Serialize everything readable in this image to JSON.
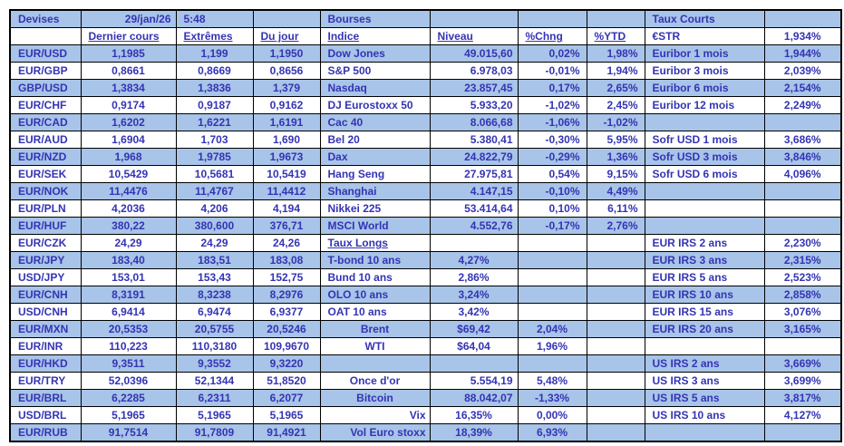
{
  "meta": {
    "date": "29/jan/26",
    "time": "5:48"
  },
  "colors": {
    "band": "#A8C4E8",
    "text": "#3434B4",
    "grid": "#000000",
    "background": "#FFFFFF"
  },
  "devises": {
    "title": "Devises",
    "headers": [
      "Dernier cours",
      "Extrêmes",
      "Du jour"
    ],
    "rows": [
      [
        "EUR/USD",
        "1,1985",
        "1,199",
        "1,1950"
      ],
      [
        "EUR/GBP",
        "0,8661",
        "0,8669",
        "0,8656"
      ],
      [
        "GBP/USD",
        "1,3834",
        "1,3836",
        "1,379"
      ],
      [
        "EUR/CHF",
        "0,9174",
        "0,9187",
        "0,9162"
      ],
      [
        "EUR/CAD",
        "1,6202",
        "1,6221",
        "1,6191"
      ],
      [
        "EUR/AUD",
        "1,6904",
        "1,703",
        "1,690"
      ],
      [
        "EUR/NZD",
        "1,968",
        "1,9785",
        "1,9673"
      ],
      [
        "EUR/SEK",
        "10,5429",
        "10,5681",
        "10,5419"
      ],
      [
        "EUR/NOK",
        "11,4476",
        "11,4767",
        "11,4412"
      ],
      [
        "EUR/PLN",
        "4,2036",
        "4,206",
        "4,194"
      ],
      [
        "EUR/HUF",
        "380,22",
        "380,600",
        "376,71"
      ],
      [
        "EUR/CZK",
        "24,29",
        "24,29",
        "24,26"
      ],
      [
        "EUR/JPY",
        "183,40",
        "183,51",
        "183,08"
      ],
      [
        "USD/JPY",
        "153,01",
        "153,43",
        "152,75"
      ],
      [
        "EUR/CNH",
        "8,3191",
        "8,3238",
        "8,2976"
      ],
      [
        "USD/CNH",
        "6,9414",
        "6,9474",
        "6,9377"
      ],
      [
        "EUR/MXN",
        "20,5353",
        "20,5755",
        "20,5246"
      ],
      [
        "EUR/INR",
        "110,223",
        "110,3180",
        "109,9670"
      ],
      [
        "EUR/HKD",
        "9,3511",
        "9,3552",
        "9,3220"
      ],
      [
        "EUR/TRY",
        "52,0396",
        "52,1344",
        "51,8520"
      ],
      [
        "EUR/BRL",
        "6,2285",
        "6,2311",
        "6,2077"
      ],
      [
        "USD/BRL",
        "5,1965",
        "5,1965",
        "5,1965"
      ],
      [
        "EUR/RUB",
        "91,7514",
        "91,7809",
        "91,4921"
      ]
    ]
  },
  "bourses": {
    "title": "Bourses",
    "headers": [
      "Indice",
      "Niveau",
      "%Chng",
      "%YTD"
    ],
    "indices": [
      [
        "Dow Jones",
        "49.015,60",
        "0,02%",
        "1,98%"
      ],
      [
        "S&P 500",
        "6.978,03",
        "-0,01%",
        "1,94%"
      ],
      [
        "Nasdaq",
        "23.857,45",
        "0,17%",
        "2,65%"
      ],
      [
        "DJ Eurostoxx 50",
        "5.933,20",
        "-1,02%",
        "2,45%"
      ],
      [
        "Cac 40",
        "8.066,68",
        "-1,06%",
        "-1,02%"
      ],
      [
        "Bel 20",
        "5.380,41",
        "-0,30%",
        "5,95%"
      ],
      [
        "Dax",
        "24.822,79",
        "-0,29%",
        "1,36%"
      ],
      [
        "Hang Seng",
        "27.975,81",
        "0,54%",
        "9,15%"
      ],
      [
        "Shanghai",
        "4.147,15",
        "-0,10%",
        "4,49%"
      ],
      [
        "Nikkei 225",
        "53.414,64",
        "0,10%",
        "6,11%"
      ],
      [
        "MSCI World",
        "4.552,76",
        "-0,17%",
        "2,76%"
      ]
    ],
    "taux_longs_title": "Taux Longs",
    "taux_longs": [
      [
        "T-bond 10 ans",
        "4,27%"
      ],
      [
        "Bund 10 ans",
        "2,86%"
      ],
      [
        "OLO 10 ans",
        "3,24%"
      ],
      [
        "OAT 10 ans",
        "3,42%"
      ]
    ],
    "commodities": [
      [
        "Brent",
        "$69,42",
        "2,04%"
      ],
      [
        "WTI",
        "$64,04",
        "1,96%"
      ]
    ],
    "others": [
      [
        "Once d'or",
        "5.554,19",
        "5,48%"
      ],
      [
        "Bitcoin",
        "88.042,07",
        "-1,33%"
      ],
      [
        "Vix",
        "16,35%",
        "0,00%"
      ],
      [
        "Vol Euro stoxx",
        "18,39%",
        "6,93%"
      ]
    ]
  },
  "taux_courts": {
    "title": "Taux Courts",
    "estr": [
      "€STR",
      "1,934%"
    ],
    "euribor": [
      [
        "Euribor 1 mois",
        "1,944%"
      ],
      [
        "Euribor 3 mois",
        "2,039%"
      ],
      [
        "Euribor 6 mois",
        "2,154%"
      ],
      [
        "Euribor 12 mois",
        "2,249%"
      ]
    ],
    "sofr": [
      [
        "Sofr USD 1 mois",
        "3,686%"
      ],
      [
        "Sofr USD 3 mois",
        "3,846%"
      ],
      [
        "Sofr USD 6 mois",
        "4,096%"
      ]
    ],
    "eur_irs": [
      [
        "EUR IRS 2 ans",
        "2,230%"
      ],
      [
        "EUR IRS 3 ans",
        "2,315%"
      ],
      [
        "EUR IRS 5 ans",
        "2,523%"
      ],
      [
        "EUR IRS 10 ans",
        "2,858%"
      ],
      [
        "EUR IRS 15 ans",
        "3,076%"
      ],
      [
        "EUR IRS 20 ans",
        "3,165%"
      ]
    ],
    "us_irs": [
      [
        "US IRS 2 ans",
        "3,669%"
      ],
      [
        "US IRS 3 ans",
        "3,699%"
      ],
      [
        "US IRS 5 ans",
        "3,817%"
      ],
      [
        "US IRS 10 ans",
        "4,127%"
      ]
    ]
  }
}
